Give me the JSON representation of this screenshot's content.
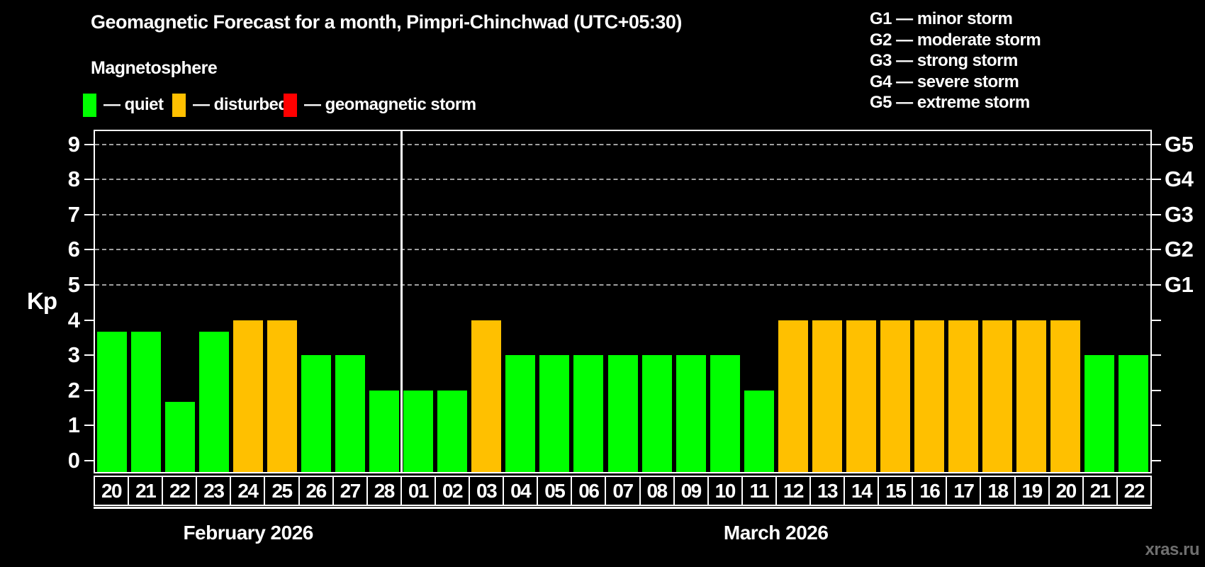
{
  "header": {
    "title": "Geomagnetic Forecast for a month, Pimpri-Chinchwad (UTC+05:30)",
    "subtitle": "Magnetosphere",
    "legend": [
      {
        "key": "quiet",
        "label": "— quiet",
        "color": "#00ff00"
      },
      {
        "key": "disturbed",
        "label": "— disturbed",
        "color": "#ffc000"
      },
      {
        "key": "storm",
        "label": "— geomagnetic storm",
        "color": "#ff0000"
      }
    ],
    "storm_scale": [
      "G1 — minor storm",
      "G2 — moderate storm",
      "G3 — strong storm",
      "G4 — severe storm",
      "G5 — extreme storm"
    ]
  },
  "watermark": "xras.ru",
  "chart_data": {
    "type": "bar",
    "ylabel": "Kp",
    "ylim": [
      -0.35,
      9.4
    ],
    "yticks": [
      0,
      1,
      2,
      3,
      4,
      5,
      6,
      7,
      8,
      9
    ],
    "gridlines_kp": [
      5,
      6,
      7,
      8,
      9
    ],
    "right_axis_labels": [
      {
        "label": "G1",
        "kp": 5
      },
      {
        "label": "G2",
        "kp": 6
      },
      {
        "label": "G3",
        "kp": 7
      },
      {
        "label": "G4",
        "kp": 8
      },
      {
        "label": "G5",
        "kp": 9
      }
    ],
    "grid": "dashed-horizontal-on-G-levels",
    "legend_position": "top-left",
    "colors": {
      "quiet": "#00ff00",
      "disturbed": "#ffc000",
      "storm": "#ff0000"
    },
    "months": [
      {
        "label": "February 2026",
        "days": 9
      },
      {
        "label": "March 2026",
        "days": 22
      }
    ],
    "bars": [
      {
        "day": "20",
        "kp": 3.67,
        "status": "quiet"
      },
      {
        "day": "21",
        "kp": 3.67,
        "status": "quiet"
      },
      {
        "day": "22",
        "kp": 1.67,
        "status": "quiet"
      },
      {
        "day": "23",
        "kp": 3.67,
        "status": "quiet"
      },
      {
        "day": "24",
        "kp": 4,
        "status": "disturbed"
      },
      {
        "day": "25",
        "kp": 4,
        "status": "disturbed"
      },
      {
        "day": "26",
        "kp": 3,
        "status": "quiet"
      },
      {
        "day": "27",
        "kp": 3,
        "status": "quiet"
      },
      {
        "day": "28",
        "kp": 2,
        "status": "quiet"
      },
      {
        "day": "01",
        "kp": 2,
        "status": "quiet"
      },
      {
        "day": "02",
        "kp": 2,
        "status": "quiet"
      },
      {
        "day": "03",
        "kp": 4,
        "status": "disturbed"
      },
      {
        "day": "04",
        "kp": 3,
        "status": "quiet"
      },
      {
        "day": "05",
        "kp": 3,
        "status": "quiet"
      },
      {
        "day": "06",
        "kp": 3,
        "status": "quiet"
      },
      {
        "day": "07",
        "kp": 3,
        "status": "quiet"
      },
      {
        "day": "08",
        "kp": 3,
        "status": "quiet"
      },
      {
        "day": "09",
        "kp": 3,
        "status": "quiet"
      },
      {
        "day": "10",
        "kp": 3,
        "status": "quiet"
      },
      {
        "day": "11",
        "kp": 2,
        "status": "quiet"
      },
      {
        "day": "12",
        "kp": 4,
        "status": "disturbed"
      },
      {
        "day": "13",
        "kp": 4,
        "status": "disturbed"
      },
      {
        "day": "14",
        "kp": 4,
        "status": "disturbed"
      },
      {
        "day": "15",
        "kp": 4,
        "status": "disturbed"
      },
      {
        "day": "16",
        "kp": 4,
        "status": "disturbed"
      },
      {
        "day": "17",
        "kp": 4,
        "status": "disturbed"
      },
      {
        "day": "18",
        "kp": 4,
        "status": "disturbed"
      },
      {
        "day": "19",
        "kp": 4,
        "status": "disturbed"
      },
      {
        "day": "20",
        "kp": 4,
        "status": "disturbed"
      },
      {
        "day": "21",
        "kp": 3,
        "status": "quiet"
      },
      {
        "day": "22",
        "kp": 3,
        "status": "quiet"
      }
    ]
  }
}
